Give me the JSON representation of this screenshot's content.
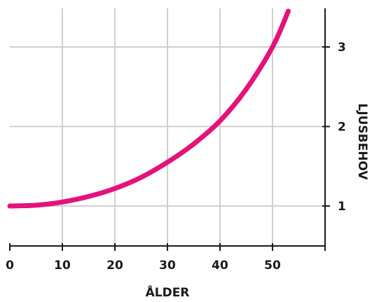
{
  "chart_data": {
    "type": "line",
    "title": "",
    "xlabel": "ÅLDER",
    "ylabel": "LJUSBEHOV",
    "xlim": [
      0,
      60
    ],
    "ylim": [
      0.5,
      3.5
    ],
    "x_ticks": [
      0,
      10,
      20,
      30,
      40,
      50
    ],
    "y_ticks": [
      1,
      2,
      3
    ],
    "grid": true,
    "y_axis_side": "right",
    "legend": "none",
    "series": [
      {
        "color": "#e2137a",
        "x": [
          0,
          5,
          10,
          15,
          20,
          25,
          30,
          35,
          40,
          45,
          50,
          53
        ],
        "y": [
          1.0,
          1.01,
          1.05,
          1.12,
          1.22,
          1.36,
          1.55,
          1.78,
          2.07,
          2.47,
          3.0,
          3.45
        ]
      }
    ]
  }
}
